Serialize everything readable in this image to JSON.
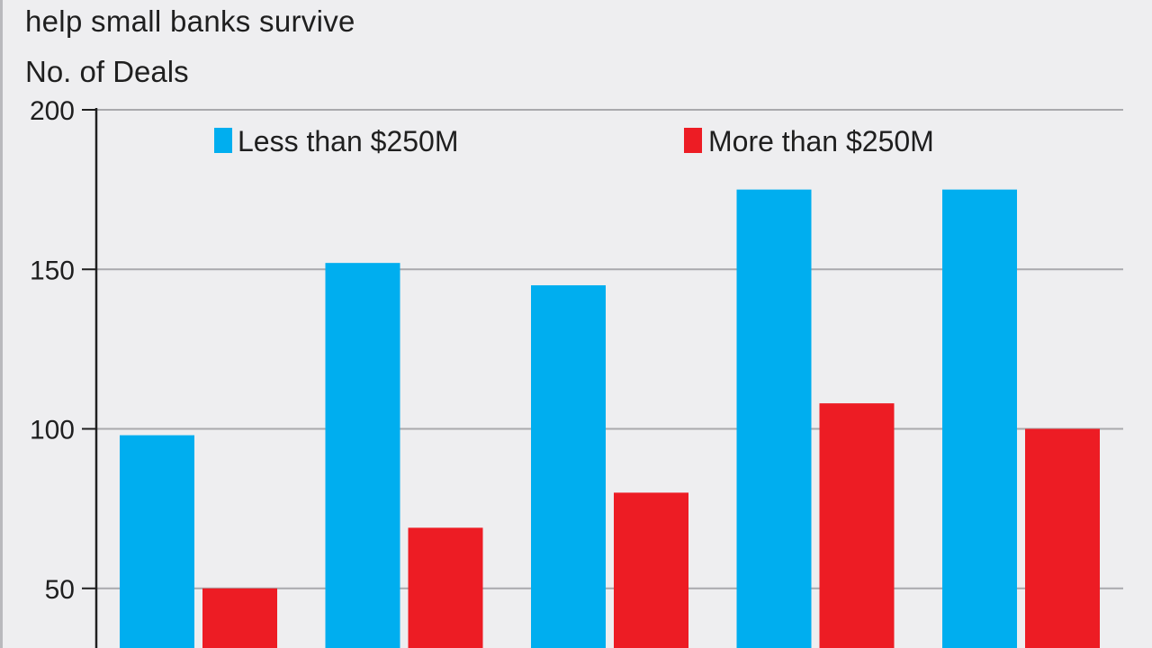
{
  "subtitle": "help small banks survive",
  "chart_data": {
    "type": "bar",
    "title": "",
    "xlabel": "",
    "ylabel": "No. of Deals",
    "ylim": [
      0,
      200
    ],
    "yticks": [
      50,
      100,
      150,
      200
    ],
    "grid": true,
    "legend_position": "top",
    "categories": [
      "",
      "",
      "",
      "",
      ""
    ],
    "series": [
      {
        "name": "Less than $250M",
        "color": "#00aeef",
        "values": [
          98,
          152,
          145,
          175,
          175
        ]
      },
      {
        "name": "More than $250M",
        "color": "#ed1c24",
        "values": [
          50,
          69,
          80,
          108,
          100
        ]
      }
    ]
  }
}
